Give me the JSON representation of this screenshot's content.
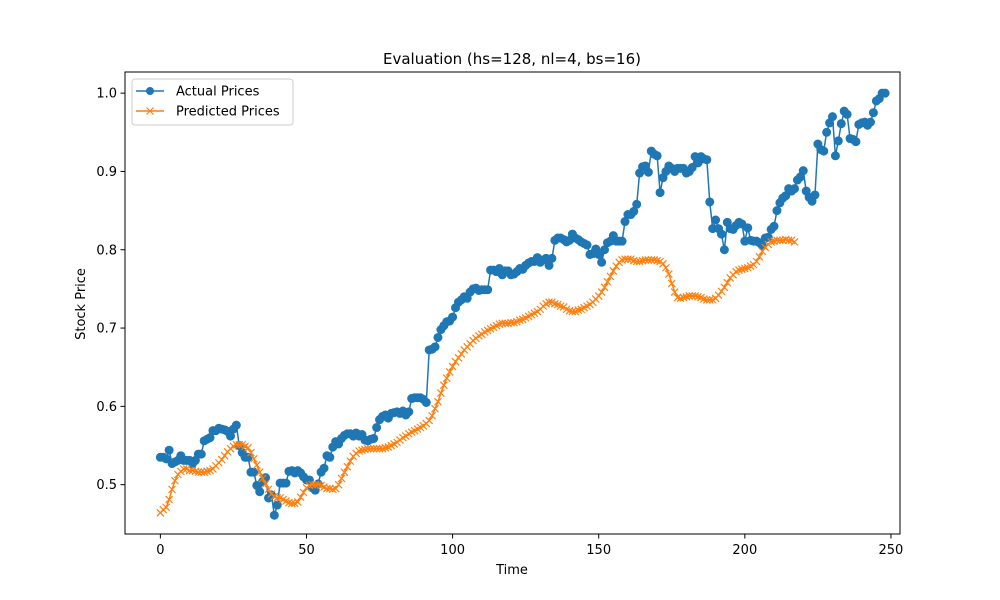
{
  "chart_data": {
    "type": "line",
    "title": "Evaluation (hs=128, nl=4, bs=16)",
    "xlabel": "Time",
    "ylabel": "Stock Price",
    "xlim": [
      -12.1,
      253.1
    ],
    "ylim": [
      0.437,
      1.027
    ],
    "xticks": [
      0,
      50,
      100,
      150,
      200,
      250
    ],
    "yticks": [
      0.5,
      0.6,
      0.7,
      0.8,
      0.9,
      1.0
    ],
    "xtick_labels": [
      "0",
      "50",
      "100",
      "150",
      "200",
      "250"
    ],
    "ytick_labels": [
      "0.5",
      "0.6",
      "0.7",
      "0.8",
      "0.9",
      "1.0"
    ],
    "grid": false,
    "legend_position": "top-left",
    "series": [
      {
        "name": "Actual Prices",
        "color": "#1f77b4",
        "marker": "circle",
        "values": [
          0.535,
          0.535,
          0.533,
          0.544,
          0.527,
          0.529,
          0.531,
          0.537,
          0.531,
          0.531,
          0.531,
          0.527,
          0.531,
          0.539,
          0.539,
          0.556,
          0.558,
          0.56,
          0.569,
          0.569,
          0.572,
          0.571,
          0.57,
          0.568,
          0.562,
          0.571,
          0.576,
          0.55,
          0.541,
          0.535,
          0.535,
          0.516,
          0.516,
          0.499,
          0.491,
          0.504,
          0.509,
          0.483,
          0.487,
          0.461,
          0.474,
          0.502,
          0.502,
          0.502,
          0.517,
          0.518,
          0.515,
          0.518,
          0.515,
          0.51,
          0.506,
          0.506,
          0.496,
          0.493,
          0.501,
          0.516,
          0.521,
          0.537,
          0.535,
          0.548,
          0.555,
          0.552,
          0.559,
          0.563,
          0.565,
          0.565,
          0.562,
          0.566,
          0.562,
          0.564,
          0.557,
          0.556,
          0.558,
          0.559,
          0.573,
          0.583,
          0.587,
          0.589,
          0.585,
          0.591,
          0.592,
          0.593,
          0.591,
          0.594,
          0.589,
          0.593,
          0.61,
          0.611,
          0.611,
          0.611,
          0.609,
          0.605,
          0.672,
          0.673,
          0.676,
          0.688,
          0.698,
          0.703,
          0.708,
          0.709,
          0.714,
          0.726,
          0.733,
          0.736,
          0.74,
          0.738,
          0.746,
          0.75,
          0.751,
          0.748,
          0.749,
          0.749,
          0.749,
          0.774,
          0.774,
          0.772,
          0.776,
          0.768,
          0.773,
          0.773,
          0.768,
          0.769,
          0.772,
          0.776,
          0.775,
          0.78,
          0.783,
          0.785,
          0.785,
          0.79,
          0.784,
          0.787,
          0.789,
          0.78,
          0.789,
          0.812,
          0.815,
          0.815,
          0.813,
          0.81,
          0.812,
          0.82,
          0.815,
          0.813,
          0.81,
          0.808,
          0.806,
          0.794,
          0.795,
          0.801,
          0.794,
          0.784,
          0.8,
          0.809,
          0.811,
          0.818,
          0.811,
          0.811,
          0.811,
          0.836,
          0.845,
          0.845,
          0.849,
          0.858,
          0.898,
          0.906,
          0.907,
          0.899,
          0.926,
          0.922,
          0.92,
          0.873,
          0.892,
          0.9,
          0.907,
          0.904,
          0.9,
          0.904,
          0.904,
          0.904,
          0.898,
          0.9,
          0.905,
          0.919,
          0.911,
          0.919,
          0.916,
          0.915,
          0.861,
          0.827,
          0.838,
          0.827,
          0.82,
          0.8,
          0.835,
          0.827,
          0.826,
          0.831,
          0.835,
          0.833,
          0.811,
          0.828,
          0.812,
          0.811,
          0.811,
          0.809,
          0.805,
          0.815,
          0.816,
          0.826,
          0.83,
          0.85,
          0.86,
          0.866,
          0.869,
          0.878,
          0.875,
          0.878,
          0.889,
          0.893,
          0.901,
          0.875,
          0.867,
          0.862,
          0.87,
          0.935,
          0.928,
          0.926,
          0.95,
          0.962,
          0.97,
          0.92,
          0.939,
          0.961,
          0.977,
          0.973,
          0.942,
          0.941,
          0.938,
          0.96,
          0.962,
          0.963,
          0.959,
          0.963,
          0.975,
          0.99,
          0.993,
          1.0,
          1.0
        ]
      },
      {
        "name": "Predicted Prices",
        "color": "#ff7f0e",
        "marker": "x",
        "values": [
          0.464,
          0.468,
          0.471,
          0.481,
          0.494,
          0.505,
          0.513,
          0.517,
          0.52,
          0.52,
          0.518,
          0.518,
          0.517,
          0.516,
          0.516,
          0.516,
          0.517,
          0.518,
          0.52,
          0.524,
          0.528,
          0.532,
          0.537,
          0.542,
          0.546,
          0.549,
          0.551,
          0.551,
          0.551,
          0.549,
          0.547,
          0.541,
          0.533,
          0.525,
          0.516,
          0.508,
          0.501,
          0.494,
          0.488,
          0.485,
          0.483,
          0.483,
          0.481,
          0.479,
          0.477,
          0.476,
          0.476,
          0.478,
          0.484,
          0.49,
          0.496,
          0.499,
          0.5,
          0.5,
          0.5,
          0.499,
          0.497,
          0.495,
          0.495,
          0.494,
          0.495,
          0.5,
          0.508,
          0.516,
          0.523,
          0.53,
          0.536,
          0.54,
          0.543,
          0.544,
          0.545,
          0.546,
          0.546,
          0.546,
          0.546,
          0.546,
          0.546,
          0.547,
          0.548,
          0.55,
          0.552,
          0.554,
          0.557,
          0.56,
          0.562,
          0.565,
          0.567,
          0.569,
          0.571,
          0.573,
          0.575,
          0.578,
          0.582,
          0.588,
          0.597,
          0.606,
          0.617,
          0.627,
          0.636,
          0.644,
          0.651,
          0.657,
          0.662,
          0.667,
          0.672,
          0.676,
          0.68,
          0.684,
          0.687,
          0.69,
          0.692,
          0.695,
          0.697,
          0.699,
          0.701,
          0.703,
          0.705,
          0.706,
          0.706,
          0.706,
          0.707,
          0.707,
          0.708,
          0.71,
          0.711,
          0.713,
          0.715,
          0.717,
          0.719,
          0.721,
          0.724,
          0.728,
          0.731,
          0.733,
          0.733,
          0.731,
          0.73,
          0.728,
          0.727,
          0.724,
          0.722,
          0.721,
          0.721,
          0.723,
          0.724,
          0.726,
          0.728,
          0.73,
          0.733,
          0.737,
          0.741,
          0.746,
          0.752,
          0.759,
          0.766,
          0.773,
          0.779,
          0.784,
          0.787,
          0.788,
          0.788,
          0.788,
          0.786,
          0.785,
          0.785,
          0.786,
          0.787,
          0.787,
          0.787,
          0.787,
          0.786,
          0.785,
          0.782,
          0.777,
          0.769,
          0.757,
          0.746,
          0.739,
          0.738,
          0.739,
          0.74,
          0.741,
          0.741,
          0.741,
          0.74,
          0.739,
          0.737,
          0.736,
          0.736,
          0.736,
          0.738,
          0.742,
          0.747,
          0.752,
          0.758,
          0.764,
          0.768,
          0.772,
          0.774,
          0.775,
          0.776,
          0.777,
          0.779,
          0.781,
          0.785,
          0.791,
          0.798,
          0.803,
          0.807,
          0.81,
          0.811,
          0.812,
          0.812,
          0.812,
          0.813,
          0.812,
          0.812,
          0.81
        ]
      }
    ],
    "x_start": 0
  }
}
